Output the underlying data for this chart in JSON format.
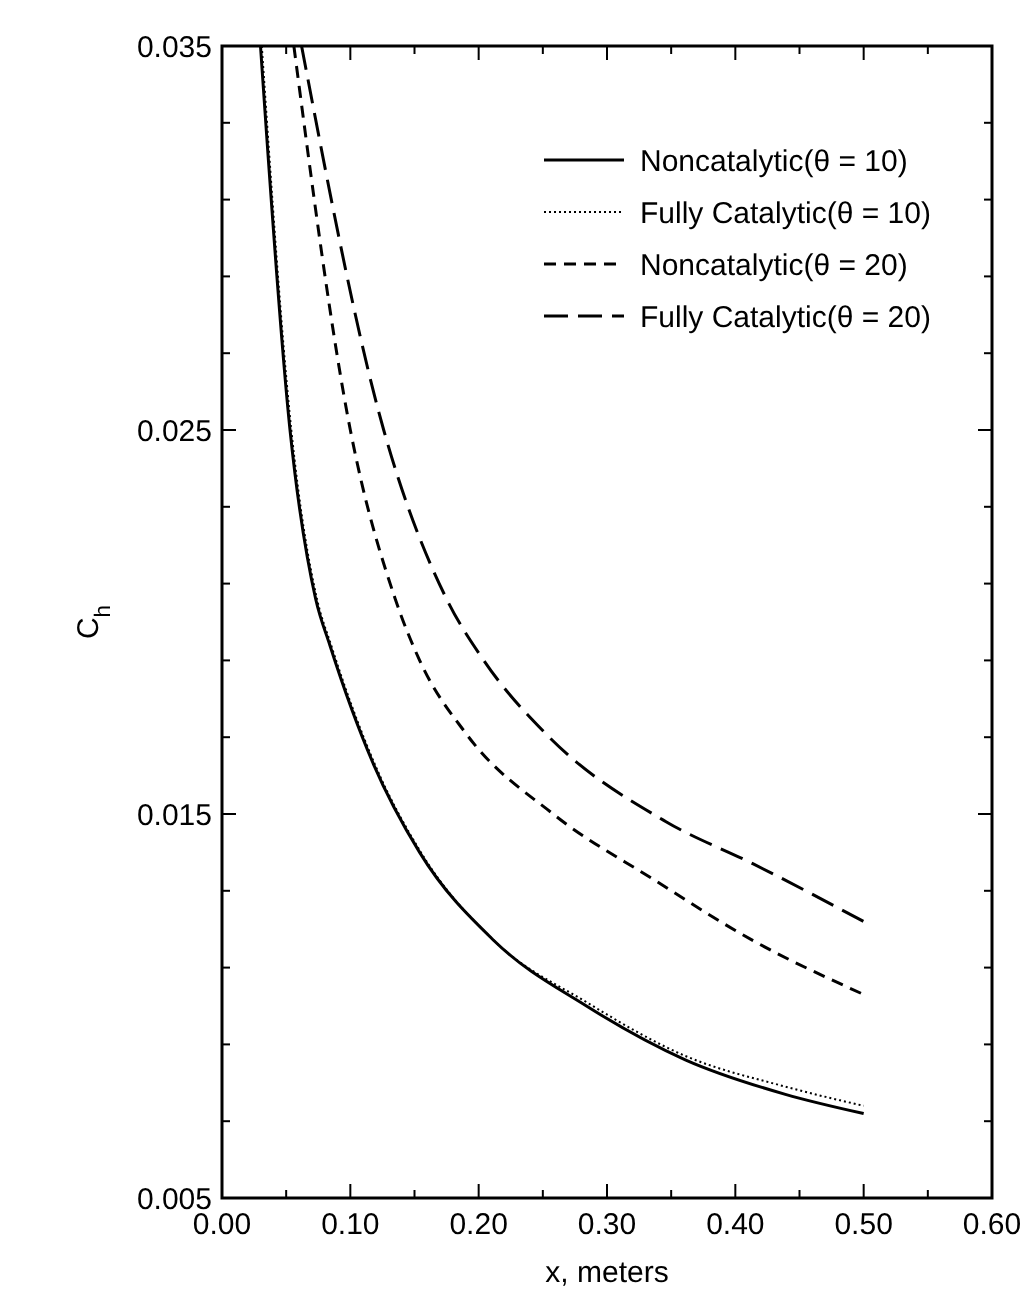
{
  "chart_data": {
    "type": "line",
    "xlabel": "x, meters",
    "ylabel": "C$_{h}$",
    "xlim": [
      0,
      0.6
    ],
    "ylim": [
      0.005,
      0.035
    ],
    "xticks": [
      {
        "value": 0,
        "label": "0.00"
      },
      {
        "value": 0.05,
        "label": null
      },
      {
        "value": 0.1,
        "label": "0.10"
      },
      {
        "value": 0.15,
        "label": null
      },
      {
        "value": 0.2,
        "label": "0.20"
      },
      {
        "value": 0.25,
        "label": null
      },
      {
        "value": 0.3,
        "label": "0.30"
      },
      {
        "value": 0.35,
        "label": null
      },
      {
        "value": 0.4,
        "label": "0.40"
      },
      {
        "value": 0.45,
        "label": null
      },
      {
        "value": 0.5,
        "label": "0.50"
      },
      {
        "value": 0.55,
        "label": null
      },
      {
        "value": 0.6,
        "label": "0.60"
      }
    ],
    "yticks": [
      {
        "value": 0.005,
        "label": "0.005"
      },
      {
        "value": 0.007,
        "label": null
      },
      {
        "value": 0.009,
        "label": null
      },
      {
        "value": 0.011,
        "label": null
      },
      {
        "value": 0.013,
        "label": null
      },
      {
        "value": 0.015,
        "label": "0.015"
      },
      {
        "value": 0.017,
        "label": null
      },
      {
        "value": 0.019,
        "label": null
      },
      {
        "value": 0.021,
        "label": null
      },
      {
        "value": 0.023,
        "label": null
      },
      {
        "value": 0.025,
        "label": "0.025"
      },
      {
        "value": 0.027,
        "label": null
      },
      {
        "value": 0.029,
        "label": null
      },
      {
        "value": 0.031,
        "label": null
      },
      {
        "value": 0.033,
        "label": null
      },
      {
        "value": 0.035,
        "label": "0.035"
      }
    ],
    "grid": false,
    "legend": "top right",
    "series": [
      {
        "name": "Noncatalytic(θ = 10)",
        "color": "#000000",
        "line_style": "solid",
        "x": [
          0.03,
          0.053,
          0.073,
          0.084,
          0.118,
          0.154,
          0.212,
          0.284,
          0.361,
          0.439,
          0.5
        ],
        "values": [
          0.035,
          0.025,
          0.0206,
          0.0194,
          0.0163,
          0.014,
          0.0117,
          0.01,
          0.0086,
          0.0077,
          0.0072
        ]
      },
      {
        "name": "Fully Catalytic(θ = 10)",
        "color": "#000000",
        "line_style": "dotted",
        "x": [
          0.031,
          0.054,
          0.074,
          0.085,
          0.119,
          0.155,
          0.212,
          0.284,
          0.361,
          0.439,
          0.5
        ],
        "values": [
          0.035,
          0.025,
          0.0206,
          0.0194,
          0.0163,
          0.014,
          0.0117,
          0.0101,
          0.0087,
          0.0079,
          0.0074
        ]
      },
      {
        "name": "Noncatalytic(θ = 20)",
        "color": "#000000",
        "line_style": "dashed",
        "x": [
          0.056,
          0.1,
          0.135,
          0.154,
          0.19,
          0.258,
          0.336,
          0.414,
          0.5
        ],
        "values": [
          0.035,
          0.025,
          0.0206,
          0.019,
          0.0171,
          0.015,
          0.0133,
          0.0117,
          0.0103
        ]
      },
      {
        "name": "Fully Catalytic(θ = 20)",
        "color": "#000000",
        "line_style": "longdash",
        "x": [
          0.062,
          0.126,
          0.175,
          0.204,
          0.252,
          0.346,
          0.414,
          0.5
        ],
        "values": [
          0.035,
          0.025,
          0.0206,
          0.019,
          0.0171,
          0.0148,
          0.0137,
          0.0122
        ]
      }
    ]
  }
}
